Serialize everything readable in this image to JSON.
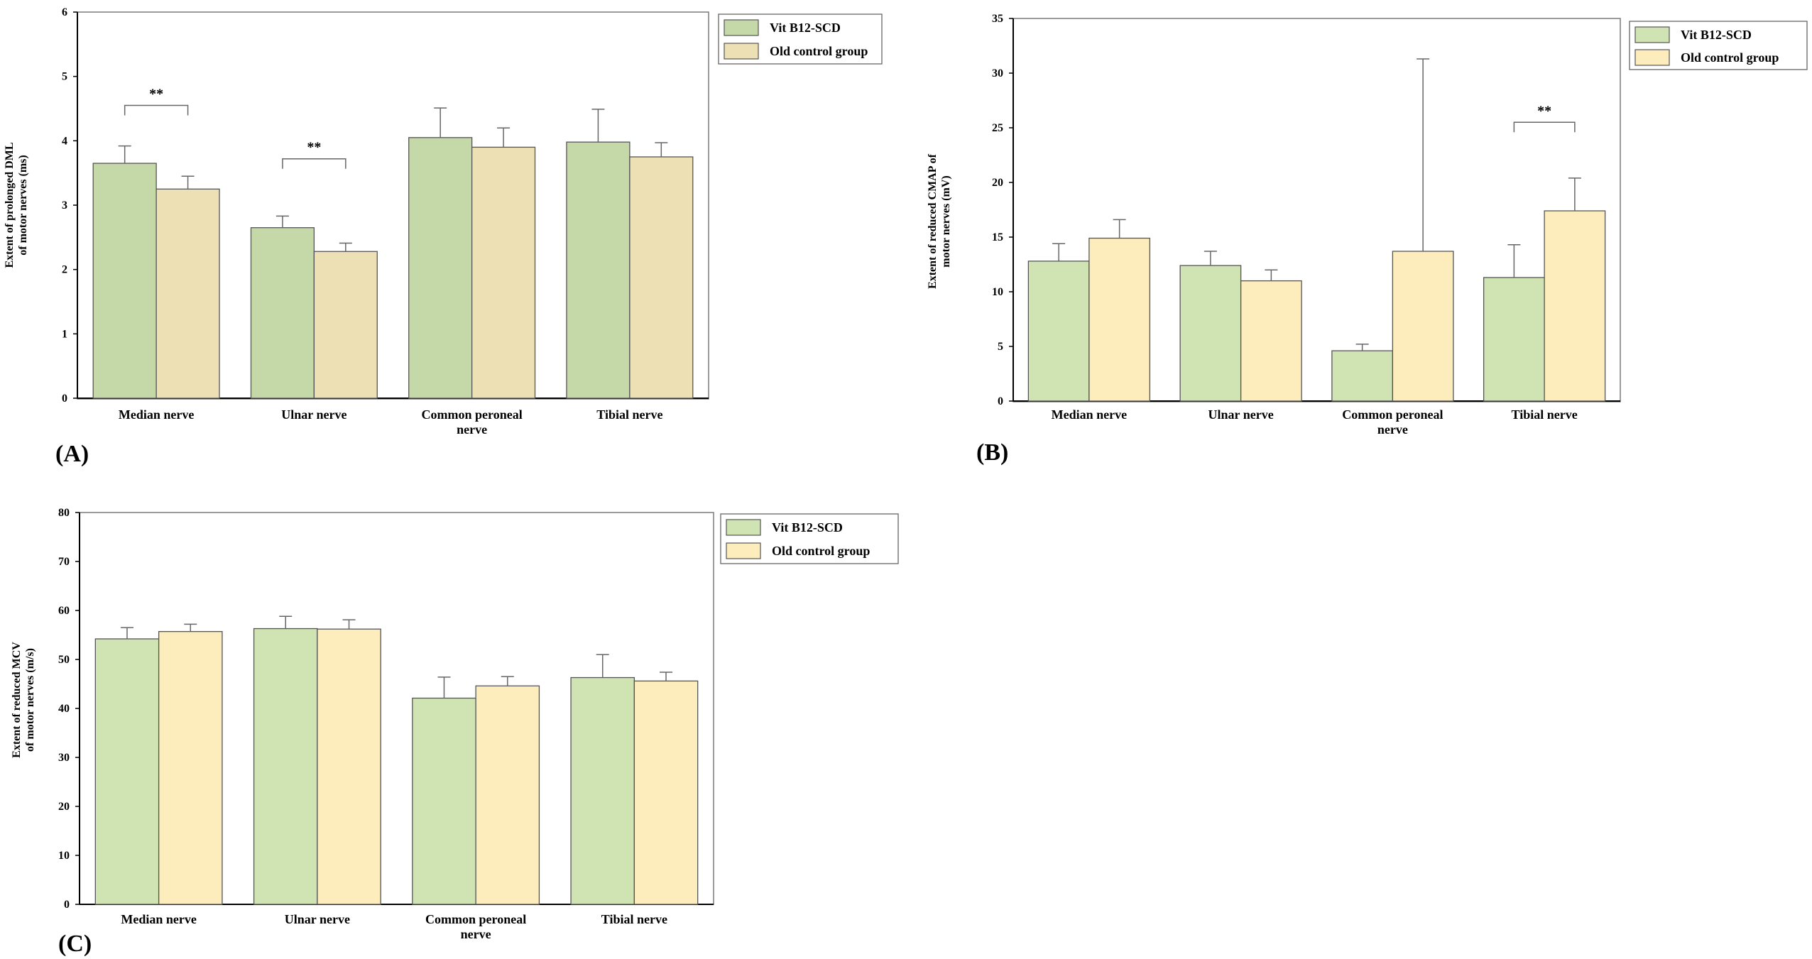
{
  "colors": {
    "series_a": "#c5d8a8",
    "series_b": "#ede0b4",
    "series_a_alt": "#cfe3b3",
    "series_b_alt": "#fdedbd",
    "axis": "#000000",
    "frame": "#7a7a7a",
    "bar_edge": "#555555",
    "error_bar": "#666666"
  },
  "chart_data": [
    {
      "panel_label": "(A)",
      "type": "bar",
      "title": "",
      "xlabel": "",
      "ylabel": "Extent of prolonged DML of motor nerves (ms)",
      "ylabel_lines": [
        "Extent of prolonged DML",
        "of motor nerves (ms)"
      ],
      "ylim": [
        0,
        6
      ],
      "yticks": [
        "0",
        "1",
        "2",
        "3",
        "4",
        "5",
        "6"
      ],
      "categories": [
        "Median nerve",
        "Ulnar  nerve",
        "Common  peroneal nerve",
        "Tibial  nerve"
      ],
      "category_lines": [
        [
          "Median nerve"
        ],
        [
          "Ulnar  nerve"
        ],
        [
          "Common  peroneal",
          "nerve"
        ],
        [
          "Tibial  nerve"
        ]
      ],
      "series": [
        {
          "name": "Vit B12-SCD",
          "values": [
            3.65,
            2.65,
            4.05,
            3.98
          ],
          "errors": [
            0.27,
            0.18,
            0.46,
            0.51
          ]
        },
        {
          "name": "Old control group",
          "values": [
            3.25,
            2.28,
            3.9,
            3.75
          ],
          "errors": [
            0.2,
            0.13,
            0.3,
            0.22
          ]
        }
      ],
      "significance": [
        {
          "category_index": 0,
          "label": "**",
          "level": 4.55
        },
        {
          "category_index": 1,
          "label": "**",
          "level": 3.72
        }
      ],
      "legend": {
        "placement": "top-right",
        "entries": [
          "Vit B12-SCD",
          "Old control group"
        ]
      }
    },
    {
      "panel_label": "(B)",
      "type": "bar",
      "title": "",
      "xlabel": "",
      "ylabel": "Extent of reduced CMAP of motor nerves (mV)",
      "ylabel_lines": [
        "Extent of reduced  CMAP of",
        "motor nerves (mV)"
      ],
      "ylim": [
        0,
        35
      ],
      "yticks": [
        "0",
        "5",
        "10",
        "15",
        "20",
        "25",
        "30",
        "35"
      ],
      "categories": [
        "Median nerve",
        "Ulnar  nerve",
        "Common  peroneal nerve",
        "Tibial  nerve"
      ],
      "category_lines": [
        [
          "Median nerve"
        ],
        [
          "Ulnar  nerve"
        ],
        [
          "Common  peroneal",
          "nerve"
        ],
        [
          "Tibial  nerve"
        ]
      ],
      "series": [
        {
          "name": "Vit B12-SCD",
          "values": [
            12.8,
            12.4,
            4.6,
            11.3
          ],
          "errors": [
            1.6,
            1.3,
            0.6,
            3.0
          ]
        },
        {
          "name": "Old control group",
          "values": [
            14.9,
            11.0,
            13.7,
            17.4
          ],
          "errors": [
            1.7,
            1.0,
            17.6,
            3.0
          ]
        }
      ],
      "significance": [
        {
          "category_index": 3,
          "label": "**",
          "level": 25.5
        }
      ],
      "legend": {
        "placement": "top-right",
        "entries": [
          "Vit B12-SCD",
          "Old control group"
        ]
      }
    },
    {
      "panel_label": "(C)",
      "type": "bar",
      "title": "",
      "xlabel": "",
      "ylabel": "Extent of reduced MCV of motor nerves (m/s)",
      "ylabel_lines": [
        "Extent of reduced  MCV",
        "of motor nerves (m/s)"
      ],
      "ylim": [
        0,
        80
      ],
      "yticks": [
        "0",
        "10",
        "20",
        "30",
        "40",
        "50",
        "60",
        "70",
        "80"
      ],
      "categories": [
        "Median nerve",
        "Ulnar  nerve",
        "Common  peroneal nerve",
        "Tibial  nerve"
      ],
      "category_lines": [
        [
          "Median nerve"
        ],
        [
          "Ulnar  nerve"
        ],
        [
          "Common  peroneal",
          "nerve"
        ],
        [
          "Tibial  nerve"
        ]
      ],
      "series": [
        {
          "name": "Vit B12-SCD",
          "values": [
            54.2,
            56.3,
            42.1,
            46.3
          ],
          "errors": [
            2.3,
            2.5,
            4.3,
            4.7
          ]
        },
        {
          "name": "Old control group",
          "values": [
            55.7,
            56.2,
            44.6,
            45.6
          ],
          "errors": [
            1.5,
            1.9,
            1.9,
            1.8
          ]
        }
      ],
      "significance": [],
      "legend": {
        "placement": "top-right",
        "entries": [
          "Vit B12-SCD",
          "Old control group"
        ]
      }
    }
  ]
}
